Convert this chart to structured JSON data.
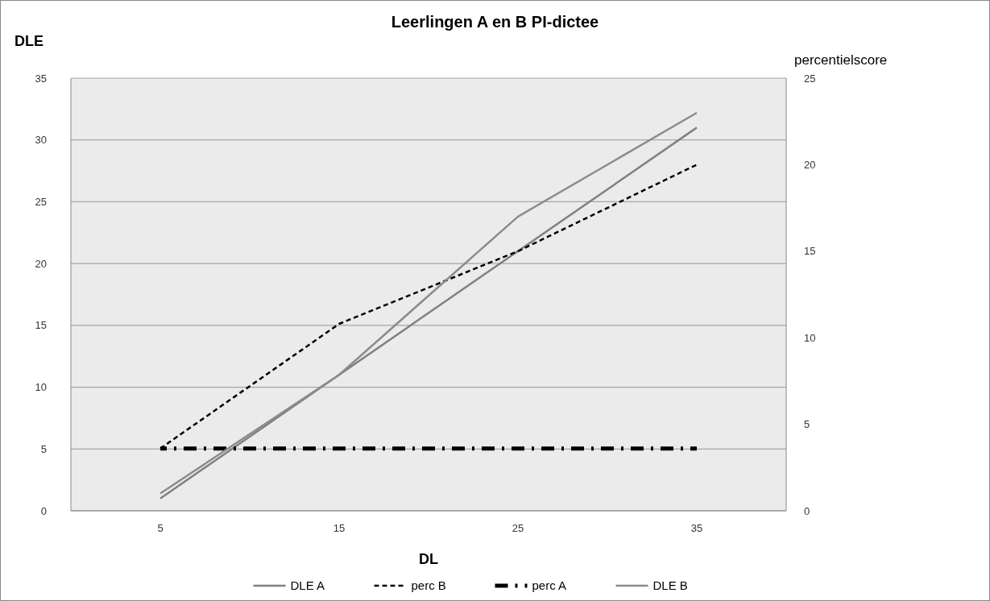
{
  "chart_data": {
    "type": "line",
    "title": "Leerlingen A en B PI-dictee",
    "xlabel": "DL",
    "ylabel": "DLE",
    "y2label": "percentielscore",
    "categories": [
      "5",
      "15",
      "25",
      "35"
    ],
    "ylim": [
      0,
      35
    ],
    "yticks": [
      0,
      5,
      10,
      15,
      20,
      25,
      30,
      35
    ],
    "y2lim": [
      0,
      25
    ],
    "y2ticks": [
      0,
      5,
      10,
      15,
      20,
      25
    ],
    "grid": "y",
    "legend": "bottom",
    "marker": "none",
    "series": [
      {
        "name": "DLE A",
        "color": "#808080",
        "line_style": "solid",
        "values": [
          1,
          11,
          21,
          31
        ]
      },
      {
        "name": "perc B",
        "color": "#000000",
        "line_style": "dashed",
        "axis": "y2",
        "values": [
          3.6,
          10.8,
          15,
          20
        ]
      },
      {
        "name": "perc A",
        "color": "#000000",
        "line_style": "dashdot",
        "axis": "y2",
        "values": [
          3.6,
          3.6,
          3.6,
          3.6
        ]
      },
      {
        "name": "DLE B",
        "color": "#8c8c8c",
        "line_style": "solid",
        "values": [
          1.4,
          11,
          23.8,
          32.2
        ]
      }
    ]
  }
}
